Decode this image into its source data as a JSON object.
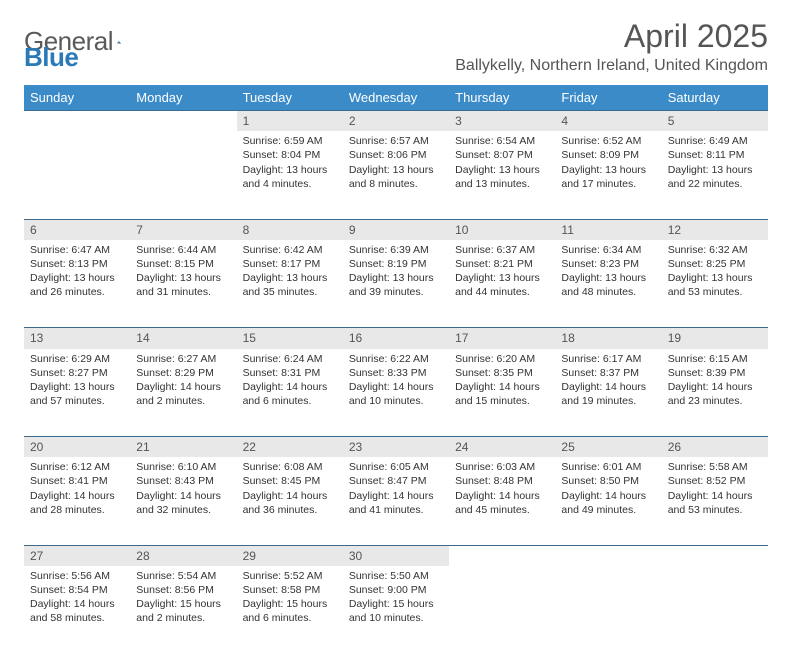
{
  "brand": {
    "text1": "General",
    "text2": "Blue"
  },
  "title": "April 2025",
  "location": "Ballykelly, Northern Ireland, United Kingdom",
  "colors": {
    "header_bg": "#3b8bc9",
    "header_text": "#ffffff",
    "daynum_bg": "#e8e8e8",
    "border": "#3b6a8c",
    "text": "#333333",
    "logo_gray": "#5a5a5a",
    "logo_blue": "#2a7ab8"
  },
  "weekdays": [
    "Sunday",
    "Monday",
    "Tuesday",
    "Wednesday",
    "Thursday",
    "Friday",
    "Saturday"
  ],
  "weeks": [
    [
      null,
      null,
      {
        "n": "1",
        "sr": "6:59 AM",
        "ss": "8:04 PM",
        "dl": "13 hours and 4 minutes."
      },
      {
        "n": "2",
        "sr": "6:57 AM",
        "ss": "8:06 PM",
        "dl": "13 hours and 8 minutes."
      },
      {
        "n": "3",
        "sr": "6:54 AM",
        "ss": "8:07 PM",
        "dl": "13 hours and 13 minutes."
      },
      {
        "n": "4",
        "sr": "6:52 AM",
        "ss": "8:09 PM",
        "dl": "13 hours and 17 minutes."
      },
      {
        "n": "5",
        "sr": "6:49 AM",
        "ss": "8:11 PM",
        "dl": "13 hours and 22 minutes."
      }
    ],
    [
      {
        "n": "6",
        "sr": "6:47 AM",
        "ss": "8:13 PM",
        "dl": "13 hours and 26 minutes."
      },
      {
        "n": "7",
        "sr": "6:44 AM",
        "ss": "8:15 PM",
        "dl": "13 hours and 31 minutes."
      },
      {
        "n": "8",
        "sr": "6:42 AM",
        "ss": "8:17 PM",
        "dl": "13 hours and 35 minutes."
      },
      {
        "n": "9",
        "sr": "6:39 AM",
        "ss": "8:19 PM",
        "dl": "13 hours and 39 minutes."
      },
      {
        "n": "10",
        "sr": "6:37 AM",
        "ss": "8:21 PM",
        "dl": "13 hours and 44 minutes."
      },
      {
        "n": "11",
        "sr": "6:34 AM",
        "ss": "8:23 PM",
        "dl": "13 hours and 48 minutes."
      },
      {
        "n": "12",
        "sr": "6:32 AM",
        "ss": "8:25 PM",
        "dl": "13 hours and 53 minutes."
      }
    ],
    [
      {
        "n": "13",
        "sr": "6:29 AM",
        "ss": "8:27 PM",
        "dl": "13 hours and 57 minutes."
      },
      {
        "n": "14",
        "sr": "6:27 AM",
        "ss": "8:29 PM",
        "dl": "14 hours and 2 minutes."
      },
      {
        "n": "15",
        "sr": "6:24 AM",
        "ss": "8:31 PM",
        "dl": "14 hours and 6 minutes."
      },
      {
        "n": "16",
        "sr": "6:22 AM",
        "ss": "8:33 PM",
        "dl": "14 hours and 10 minutes."
      },
      {
        "n": "17",
        "sr": "6:20 AM",
        "ss": "8:35 PM",
        "dl": "14 hours and 15 minutes."
      },
      {
        "n": "18",
        "sr": "6:17 AM",
        "ss": "8:37 PM",
        "dl": "14 hours and 19 minutes."
      },
      {
        "n": "19",
        "sr": "6:15 AM",
        "ss": "8:39 PM",
        "dl": "14 hours and 23 minutes."
      }
    ],
    [
      {
        "n": "20",
        "sr": "6:12 AM",
        "ss": "8:41 PM",
        "dl": "14 hours and 28 minutes."
      },
      {
        "n": "21",
        "sr": "6:10 AM",
        "ss": "8:43 PM",
        "dl": "14 hours and 32 minutes."
      },
      {
        "n": "22",
        "sr": "6:08 AM",
        "ss": "8:45 PM",
        "dl": "14 hours and 36 minutes."
      },
      {
        "n": "23",
        "sr": "6:05 AM",
        "ss": "8:47 PM",
        "dl": "14 hours and 41 minutes."
      },
      {
        "n": "24",
        "sr": "6:03 AM",
        "ss": "8:48 PM",
        "dl": "14 hours and 45 minutes."
      },
      {
        "n": "25",
        "sr": "6:01 AM",
        "ss": "8:50 PM",
        "dl": "14 hours and 49 minutes."
      },
      {
        "n": "26",
        "sr": "5:58 AM",
        "ss": "8:52 PM",
        "dl": "14 hours and 53 minutes."
      }
    ],
    [
      {
        "n": "27",
        "sr": "5:56 AM",
        "ss": "8:54 PM",
        "dl": "14 hours and 58 minutes."
      },
      {
        "n": "28",
        "sr": "5:54 AM",
        "ss": "8:56 PM",
        "dl": "15 hours and 2 minutes."
      },
      {
        "n": "29",
        "sr": "5:52 AM",
        "ss": "8:58 PM",
        "dl": "15 hours and 6 minutes."
      },
      {
        "n": "30",
        "sr": "5:50 AM",
        "ss": "9:00 PM",
        "dl": "15 hours and 10 minutes."
      },
      null,
      null,
      null
    ]
  ],
  "labels": {
    "sunrise": "Sunrise:",
    "sunset": "Sunset:",
    "daylight": "Daylight:"
  }
}
